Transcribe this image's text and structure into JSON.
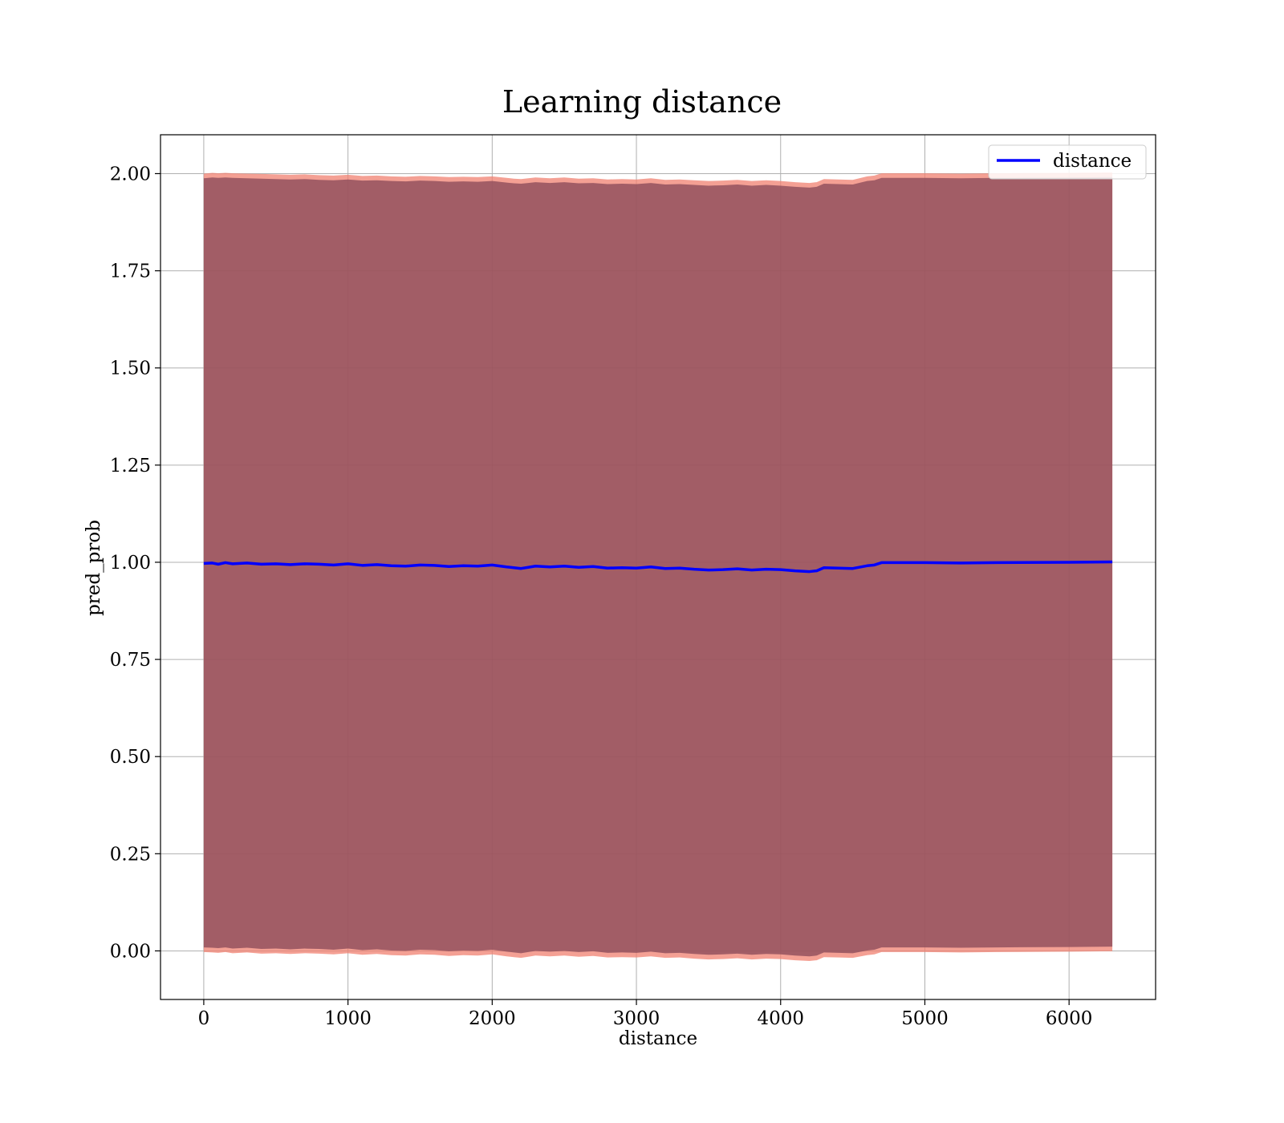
{
  "chart_data": {
    "type": "line",
    "title": "Learning distance",
    "xlabel": "distance",
    "ylabel": "pred_prob",
    "xlim": [
      -300,
      6600
    ],
    "ylim": [
      -0.125,
      2.1
    ],
    "xticks": [
      0,
      1000,
      2000,
      3000,
      4000,
      5000,
      6000
    ],
    "xtick_labels": [
      "0",
      "1000",
      "2000",
      "3000",
      "4000",
      "5000",
      "6000"
    ],
    "yticks": [
      0.0,
      0.25,
      0.5,
      0.75,
      1.0,
      1.25,
      1.5,
      1.75,
      2.0
    ],
    "ytick_labels": [
      "0.00",
      "0.25",
      "0.50",
      "0.75",
      "1.00",
      "1.25",
      "1.50",
      "1.75",
      "2.00"
    ],
    "grid": true,
    "legend": {
      "position": "top-right",
      "entries": [
        "distance"
      ]
    },
    "colors": {
      "line": "#0000ff",
      "band_outer": "#f08070",
      "band_inner": "#8b4a5a"
    },
    "series": [
      {
        "name": "distance",
        "x": [
          0,
          60,
          100,
          150,
          200,
          300,
          400,
          500,
          600,
          700,
          800,
          900,
          1000,
          1100,
          1200,
          1300,
          1400,
          1500,
          1600,
          1700,
          1800,
          1900,
          2000,
          2100,
          2150,
          2200,
          2250,
          2300,
          2400,
          2500,
          2600,
          2700,
          2800,
          2900,
          3000,
          3100,
          3200,
          3300,
          3400,
          3500,
          3600,
          3700,
          3800,
          3900,
          4000,
          4100,
          4200,
          4250,
          4300,
          4400,
          4500,
          4600,
          4650,
          4700,
          5000,
          5250,
          5500,
          6000,
          6300
        ],
        "values": [
          0.997,
          0.998,
          0.995,
          0.999,
          0.996,
          0.998,
          0.995,
          0.996,
          0.994,
          0.996,
          0.995,
          0.993,
          0.996,
          0.992,
          0.994,
          0.991,
          0.99,
          0.993,
          0.992,
          0.989,
          0.991,
          0.99,
          0.993,
          0.988,
          0.986,
          0.984,
          0.987,
          0.99,
          0.988,
          0.99,
          0.987,
          0.989,
          0.985,
          0.986,
          0.985,
          0.988,
          0.984,
          0.985,
          0.982,
          0.98,
          0.981,
          0.983,
          0.98,
          0.982,
          0.981,
          0.978,
          0.976,
          0.978,
          0.986,
          0.985,
          0.984,
          0.991,
          0.993,
          0.999,
          0.999,
          0.998,
          0.999,
          1.0,
          1.001
        ],
        "band_upper": [
          1.992,
          1.994,
          1.993,
          1.994,
          1.993,
          1.992,
          1.991,
          1.99,
          1.989,
          1.99,
          1.988,
          1.987,
          1.989,
          1.986,
          1.987,
          1.985,
          1.984,
          1.986,
          1.985,
          1.983,
          1.984,
          1.983,
          1.985,
          1.981,
          1.979,
          1.978,
          1.98,
          1.982,
          1.98,
          1.982,
          1.979,
          1.98,
          1.977,
          1.978,
          1.977,
          1.98,
          1.976,
          1.977,
          1.975,
          1.973,
          1.974,
          1.976,
          1.973,
          1.975,
          1.973,
          1.97,
          1.968,
          1.97,
          1.978,
          1.977,
          1.976,
          1.985,
          1.987,
          1.993,
          1.993,
          1.992,
          1.993,
          1.994,
          1.995
        ],
        "band_lower": [
          0.005,
          0.004,
          0.003,
          0.005,
          0.002,
          0.004,
          0.001,
          0.002,
          0.0,
          0.002,
          0.001,
          -0.001,
          0.002,
          -0.002,
          0.0,
          -0.003,
          -0.004,
          -0.001,
          -0.002,
          -0.005,
          -0.003,
          -0.004,
          -0.001,
          -0.006,
          -0.008,
          -0.01,
          -0.007,
          -0.004,
          -0.006,
          -0.004,
          -0.007,
          -0.005,
          -0.009,
          -0.008,
          -0.009,
          -0.006,
          -0.01,
          -0.009,
          -0.012,
          -0.014,
          -0.013,
          -0.011,
          -0.014,
          -0.012,
          -0.013,
          -0.016,
          -0.018,
          -0.016,
          -0.008,
          -0.009,
          -0.01,
          -0.003,
          -0.001,
          0.005,
          0.005,
          0.004,
          0.005,
          0.006,
          0.007
        ]
      }
    ]
  }
}
